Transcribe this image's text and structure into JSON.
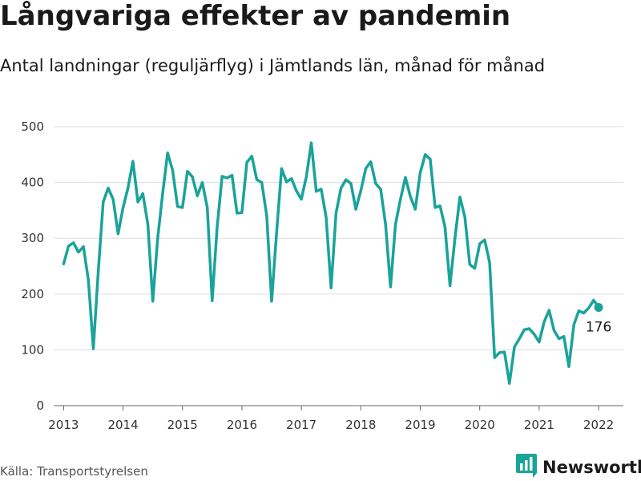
{
  "header": {
    "title": "Långvariga effekter av pandemin",
    "subtitle": "Antal landningar (reguljärflyg) i Jämtlands län, månad för månad"
  },
  "footer": {
    "source": "Källa: Transportstyrelsen",
    "brand": "Newsworthy"
  },
  "colors": {
    "series": "#1aa39a",
    "brand": "#1aa39a"
  },
  "icons": {
    "brand": "bar-chart-logo-icon"
  },
  "chart_data": {
    "type": "line",
    "title": "Långvariga effekter av pandemin",
    "subtitle": "Antal landningar (reguljärflyg) i Jämtlands län, månad för månad",
    "xlabel": "",
    "ylabel": "",
    "xlim": [
      "2012-11",
      "2022-06"
    ],
    "ylim": [
      0,
      500
    ],
    "grid": true,
    "legend": "none",
    "x_ticks": [
      "2013",
      "2014",
      "2015",
      "2016",
      "2017",
      "2018",
      "2019",
      "2020",
      "2021",
      "2022"
    ],
    "y_ticks": [
      0,
      100,
      200,
      300,
      400,
      500
    ],
    "end_label": "176",
    "series": [
      {
        "x": [
          "2013-01",
          "2013-02",
          "2013-03",
          "2013-04",
          "2013-05",
          "2013-06",
          "2013-07",
          "2013-08",
          "2013-09",
          "2013-10",
          "2013-11",
          "2013-12",
          "2014-01",
          "2014-02",
          "2014-03",
          "2014-04",
          "2014-05",
          "2014-06",
          "2014-07",
          "2014-08",
          "2014-09",
          "2014-10",
          "2014-11",
          "2014-12",
          "2015-01",
          "2015-02",
          "2015-03",
          "2015-04",
          "2015-05",
          "2015-06",
          "2015-07",
          "2015-08",
          "2015-09",
          "2015-10",
          "2015-11",
          "2015-12",
          "2016-01",
          "2016-02",
          "2016-03",
          "2016-04",
          "2016-05",
          "2016-06",
          "2016-07",
          "2016-08",
          "2016-09",
          "2016-10",
          "2016-11",
          "2016-12",
          "2017-01",
          "2017-02",
          "2017-03",
          "2017-04",
          "2017-05",
          "2017-06",
          "2017-07",
          "2017-08",
          "2017-09",
          "2017-10",
          "2017-11",
          "2017-12",
          "2018-01",
          "2018-02",
          "2018-03",
          "2018-04",
          "2018-05",
          "2018-06",
          "2018-07",
          "2018-08",
          "2018-09",
          "2018-10",
          "2018-11",
          "2018-12",
          "2019-01",
          "2019-02",
          "2019-03",
          "2019-04",
          "2019-05",
          "2019-06",
          "2019-07",
          "2019-08",
          "2019-09",
          "2019-10",
          "2019-11",
          "2019-12",
          "2020-01",
          "2020-02",
          "2020-03",
          "2020-04",
          "2020-05",
          "2020-06",
          "2020-07",
          "2020-08",
          "2020-09",
          "2020-10",
          "2020-11",
          "2020-12",
          "2021-01",
          "2021-02",
          "2021-03",
          "2021-04",
          "2021-05",
          "2021-06",
          "2021-07",
          "2021-08",
          "2021-09",
          "2021-10",
          "2021-11",
          "2021-12",
          "2022-01"
        ],
        "values": [
          254,
          286,
          292,
          275,
          285,
          225,
          102,
          240,
          365,
          390,
          370,
          308,
          355,
          390,
          438,
          365,
          380,
          325,
          187,
          300,
          380,
          453,
          422,
          357,
          355,
          420,
          410,
          376,
          400,
          355,
          188,
          320,
          411,
          408,
          413,
          345,
          346,
          436,
          447,
          405,
          400,
          340,
          187,
          310,
          425,
          401,
          407,
          385,
          370,
          410,
          471,
          384,
          388,
          338,
          211,
          345,
          390,
          405,
          398,
          352,
          385,
          425,
          437,
          398,
          388,
          325,
          213,
          325,
          370,
          409,
          375,
          352,
          418,
          450,
          442,
          355,
          358,
          320,
          215,
          300,
          374,
          338,
          253,
          246,
          290,
          297,
          256,
          86,
          95,
          96,
          40,
          105,
          120,
          136,
          138,
          128,
          114,
          150,
          171,
          135,
          120,
          124,
          70,
          145,
          170,
          166,
          175,
          189,
          176
        ]
      }
    ]
  }
}
